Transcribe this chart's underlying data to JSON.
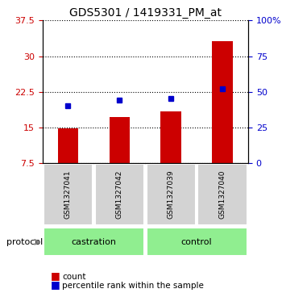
{
  "title": "GDS5301 / 1419331_PM_at",
  "samples": [
    "GSM1327041",
    "GSM1327042",
    "GSM1327039",
    "GSM1327040"
  ],
  "bar_values": [
    14.8,
    17.2,
    18.3,
    33.2
  ],
  "percentile_values": [
    40,
    44,
    45,
    52
  ],
  "groups": [
    {
      "label": "castration",
      "indices": [
        0,
        1
      ],
      "color": "#90ee90"
    },
    {
      "label": "control",
      "indices": [
        2,
        3
      ],
      "color": "#90ee90"
    }
  ],
  "ylim_left": [
    7.5,
    37.5
  ],
  "ylim_right": [
    0,
    100
  ],
  "yticks_left": [
    7.5,
    15.0,
    22.5,
    30.0,
    37.5
  ],
  "yticks_right": [
    0,
    25,
    50,
    75,
    100
  ],
  "ytick_labels_left": [
    "7.5",
    "15",
    "22.5",
    "30",
    "37.5"
  ],
  "ytick_labels_right": [
    "0",
    "25",
    "50",
    "75",
    "100%"
  ],
  "bar_color": "#cc0000",
  "marker_color": "#0000cc",
  "sample_box_color": "#d3d3d3",
  "legend_count_label": "count",
  "legend_percentile_label": "percentile rank within the sample",
  "protocol_label": "protocol",
  "bar_width": 0.4
}
